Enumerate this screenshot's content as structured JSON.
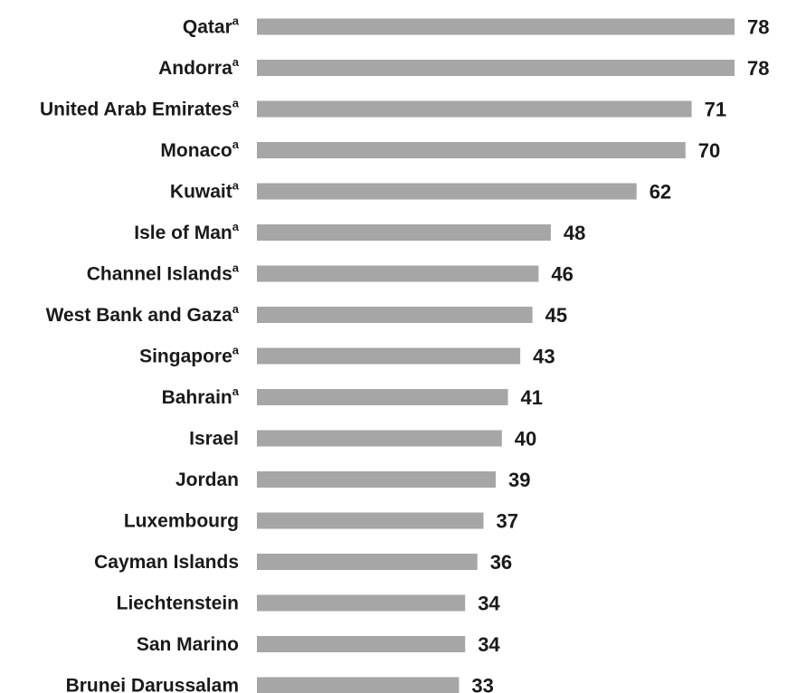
{
  "chart_data": {
    "type": "bar",
    "orientation": "horizontal",
    "bar_color": "#a6a6a6",
    "text_color": "#1a1a1a",
    "categories": [
      {
        "name": "Qatar",
        "note": "a"
      },
      {
        "name": "Andorra",
        "note": "a"
      },
      {
        "name": "United Arab Emirates",
        "note": "a"
      },
      {
        "name": "Monaco",
        "note": "a"
      },
      {
        "name": "Kuwait",
        "note": "a"
      },
      {
        "name": "Isle of Man",
        "note": "a"
      },
      {
        "name": "Channel Islands",
        "note": "a"
      },
      {
        "name": "West Bank and Gaza",
        "note": "a"
      },
      {
        "name": "Singapore",
        "note": "a"
      },
      {
        "name": "Bahrain",
        "note": "a"
      },
      {
        "name": "Israel",
        "note": ""
      },
      {
        "name": "Jordan",
        "note": ""
      },
      {
        "name": "Luxembourg",
        "note": ""
      },
      {
        "name": "Cayman Islands",
        "note": ""
      },
      {
        "name": "Liechtenstein",
        "note": ""
      },
      {
        "name": "San Marino",
        "note": ""
      },
      {
        "name": "Brunei Darussalam",
        "note": ""
      }
    ],
    "values": [
      78,
      78,
      71,
      70,
      62,
      48,
      46,
      45,
      43,
      41,
      40,
      39,
      37,
      36,
      34,
      34,
      33
    ],
    "title": "",
    "xlabel": "",
    "ylabel": "",
    "xlim": [
      0,
      78
    ],
    "grid": false,
    "legend": "none"
  }
}
